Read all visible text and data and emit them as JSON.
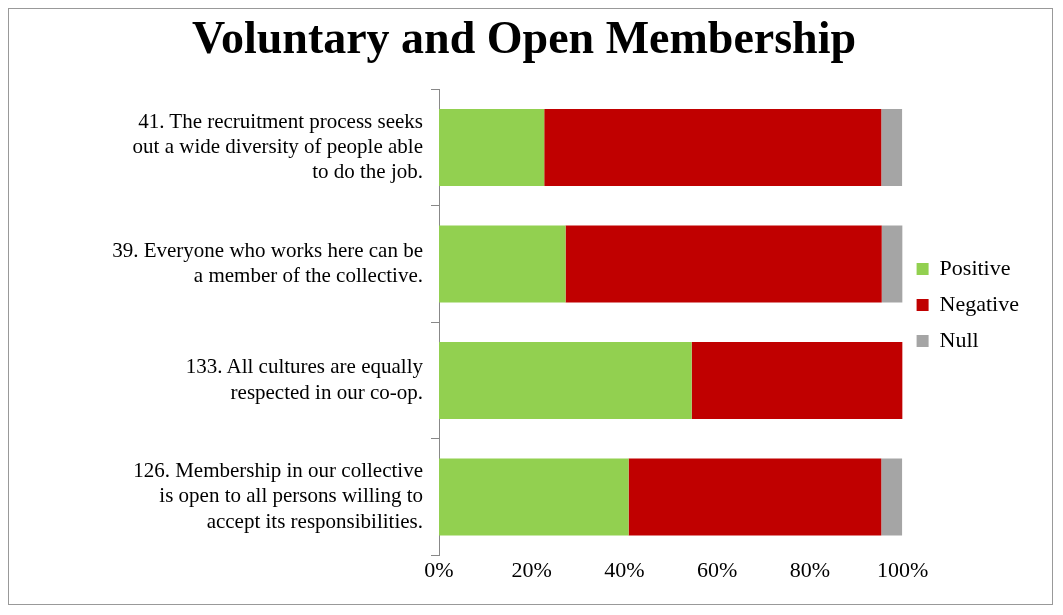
{
  "chart_data": {
    "type": "bar",
    "orientation": "horizontal",
    "stacked": true,
    "title": "Voluntary and Open Membership",
    "categories": [
      "41. The recruitment process seeks out a wide diversity of people able to do the job.",
      "39. Everyone who works here can be a member of the collective.",
      "133. All cultures are equally respected in our co-op.",
      "126. Membership in our collective is open to all persons willing to accept its responsibilities."
    ],
    "series": [
      {
        "name": "Positive",
        "color": "#92d050",
        "values": [
          22.7,
          27.3,
          54.5,
          40.9
        ]
      },
      {
        "name": "Negative",
        "color": "#c00000",
        "values": [
          72.7,
          68.2,
          45.5,
          54.5
        ]
      },
      {
        "name": "Null",
        "color": "#a5a5a5",
        "values": [
          4.5,
          4.5,
          0,
          4.5
        ]
      }
    ],
    "xlim": [
      0,
      100
    ],
    "xticks": [
      {
        "value": 0,
        "label": "0%"
      },
      {
        "value": 20,
        "label": "20%"
      },
      {
        "value": 40,
        "label": "40%"
      },
      {
        "value": 60,
        "label": "60%"
      },
      {
        "value": 80,
        "label": "80%"
      },
      {
        "value": 100,
        "label": "100%"
      }
    ],
    "legend": "right"
  }
}
